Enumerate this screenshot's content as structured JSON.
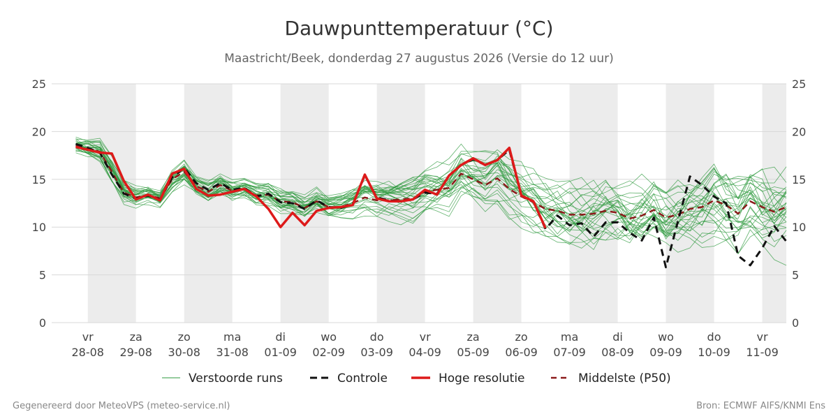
{
  "chart_data": {
    "type": "line",
    "title": "Dauwpunttemperatuur (°C)",
    "subtitle": "Maastricht/Beek, donderdag 27 augustus 2026 (Versie do 12 uur)",
    "ylim": [
      0,
      25
    ],
    "yticks": [
      0,
      5,
      10,
      15,
      20,
      25
    ],
    "xlim": [
      -0.75,
      14.5
    ],
    "x_ticks": [
      {
        "x": 0,
        "day": "vr",
        "date": "28-08"
      },
      {
        "x": 1,
        "day": "za",
        "date": "29-08"
      },
      {
        "x": 2,
        "day": "zo",
        "date": "30-08"
      },
      {
        "x": 3,
        "day": "ma",
        "date": "31-08"
      },
      {
        "x": 4,
        "day": "di",
        "date": "01-09"
      },
      {
        "x": 5,
        "day": "wo",
        "date": "02-09"
      },
      {
        "x": 6,
        "day": "do",
        "date": "03-09"
      },
      {
        "x": 7,
        "day": "vr",
        "date": "04-09"
      },
      {
        "x": 8,
        "day": "za",
        "date": "05-09"
      },
      {
        "x": 9,
        "day": "zo",
        "date": "06-09"
      },
      {
        "x": 10,
        "day": "ma",
        "date": "07-09"
      },
      {
        "x": 11,
        "day": "di",
        "date": "08-09"
      },
      {
        "x": 12,
        "day": "wo",
        "date": "09-09"
      },
      {
        "x": 13,
        "day": "do",
        "date": "10-09"
      },
      {
        "x": 14,
        "day": "vr",
        "date": "11-09"
      }
    ],
    "shaded_days": [
      [
        0,
        1
      ],
      [
        2,
        3
      ],
      [
        4,
        5
      ],
      [
        6,
        7
      ],
      [
        8,
        9
      ],
      [
        10,
        11
      ],
      [
        12,
        13
      ],
      [
        14,
        14.5
      ]
    ],
    "grid": "horizontal",
    "ensemble": {
      "name": "Verstoorde runs",
      "color": "#2e9a3e",
      "members": 30,
      "x_step": 0.25,
      "x_start": -0.25,
      "spread": [
        1.2,
        1.3,
        1.4,
        1.4,
        1.2,
        1.0,
        1.0,
        1.0,
        1.1,
        1.1,
        1.0,
        1.0,
        1.1,
        1.1,
        1.1,
        1.1,
        1.2,
        1.2,
        1.2,
        1.2,
        1.2,
        1.3,
        1.3,
        1.4,
        1.5,
        1.6,
        1.7,
        1.8,
        1.9,
        2.0,
        2.1,
        2.2,
        2.3,
        2.4,
        2.5,
        2.6,
        2.7,
        2.8,
        2.9,
        3.0,
        3.1,
        3.2,
        3.3,
        3.4,
        3.5,
        3.5,
        3.6,
        3.6,
        3.7,
        3.7,
        3.8,
        3.8,
        3.8,
        3.9,
        3.9,
        3.9,
        4.0,
        4.0,
        4.0,
        4.0,
        4.0,
        4.0
      ]
    },
    "series": [
      {
        "name": "Controle",
        "color": "#111111",
        "dash": "10,7",
        "width": 3,
        "x_step": 0.25,
        "x_start": -0.25,
        "values": [
          18.7,
          18.3,
          17.8,
          15.5,
          13.5,
          13.0,
          13.3,
          12.9,
          15.2,
          16.2,
          14.6,
          13.9,
          14.6,
          13.9,
          14.1,
          13.2,
          13.5,
          12.6,
          12.5,
          11.9,
          12.8,
          12.1,
          12.0,
          12.4,
          15.4,
          13.1,
          12.8,
          12.7,
          12.9,
          13.6,
          13.5,
          15.4,
          16.5,
          17.1,
          16.5,
          17.0,
          18.1,
          13.3,
          12.7,
          9.8,
          11.2,
          10.2,
          10.4,
          9.0,
          10.5,
          10.5,
          9.4,
          8.6,
          11.0,
          5.8,
          10.6,
          15.3,
          14.4,
          13.2,
          12.5,
          7.0,
          6.0,
          7.8,
          10.1,
          8.5
        ]
      },
      {
        "name": "Hoge resolutie",
        "color": "#dd1a1a",
        "width": 3.5,
        "x_step": 0.25,
        "x_start": -0.25,
        "values": [
          18.4,
          18.1,
          17.8,
          17.7,
          14.8,
          12.9,
          13.4,
          12.8,
          15.6,
          16.1,
          14.0,
          13.3,
          13.4,
          13.7,
          14.0,
          13.2,
          11.9,
          10.0,
          11.5,
          10.2,
          11.7,
          12.0,
          12.1,
          12.3,
          15.5,
          13.0,
          12.7,
          12.7,
          12.9,
          13.9,
          13.4,
          15.4,
          16.5,
          17.2,
          16.5,
          17.0,
          18.3,
          13.3,
          12.7,
          9.9
        ]
      },
      {
        "name": "Middelste (P50)",
        "color": "#8b1a1a",
        "dash": "9,6",
        "width": 2.5,
        "x_step": 0.25,
        "x_start": -0.25,
        "values": [
          18.5,
          18.2,
          17.9,
          15.8,
          13.6,
          13.1,
          13.4,
          13.0,
          15.0,
          15.8,
          14.3,
          13.7,
          14.4,
          13.8,
          14.0,
          13.3,
          13.4,
          12.7,
          12.6,
          12.0,
          12.7,
          12.1,
          12.1,
          12.5,
          13.1,
          12.8,
          12.8,
          12.9,
          13.0,
          13.7,
          13.9,
          14.1,
          15.6,
          15.0,
          14.4,
          15.1,
          14.0,
          13.2,
          12.6,
          11.9,
          11.7,
          11.3,
          11.3,
          11.4,
          11.7,
          11.5,
          10.9,
          11.2,
          11.8,
          11.0,
          11.3,
          11.9,
          12.1,
          12.8,
          12.3,
          11.4,
          12.7,
          12.1,
          11.6,
          12.1
        ]
      }
    ],
    "legend": [
      {
        "label": "Verstoorde runs",
        "kind": "thin"
      },
      {
        "label": "Controle",
        "kind": "dash-black"
      },
      {
        "label": "Hoge resolutie",
        "kind": "solid-red"
      },
      {
        "label": "Middelste (P50)",
        "kind": "dash-darkred"
      }
    ],
    "legend_position": "bottom"
  },
  "footer": {
    "left": "Gegenereerd door MeteoVPS (meteo-service.nl)",
    "right": "Bron: ECMWF AIFS/KNMI Ens"
  }
}
